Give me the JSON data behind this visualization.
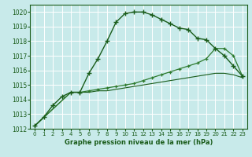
{
  "title": "Graphe pression niveau de la mer (hPa)",
  "bg_color": "#c8eaea",
  "grid_color": "#ffffff",
  "line_color_dark": "#1a5c1a",
  "line_color_med": "#2d7a2d",
  "xlim": [
    -0.5,
    23.5
  ],
  "ylim": [
    1012,
    1020.5
  ],
  "yticks": [
    1012,
    1013,
    1014,
    1015,
    1016,
    1017,
    1018,
    1019,
    1020
  ],
  "xticks": [
    0,
    1,
    2,
    3,
    4,
    5,
    6,
    7,
    8,
    9,
    10,
    11,
    12,
    13,
    14,
    15,
    16,
    17,
    18,
    19,
    20,
    21,
    22,
    23
  ],
  "series1_x": [
    0,
    1,
    2,
    3,
    4,
    5,
    6,
    7,
    8,
    9,
    10,
    11,
    12,
    13,
    14,
    15,
    16,
    17,
    18,
    19,
    20,
    21,
    22,
    23
  ],
  "series1_y": [
    1012.2,
    1012.8,
    1013.6,
    1014.2,
    1014.5,
    1014.5,
    1015.8,
    1016.8,
    1018.0,
    1019.3,
    1019.9,
    1020.0,
    1020.0,
    1019.8,
    1019.5,
    1019.2,
    1018.9,
    1018.8,
    1018.2,
    1018.1,
    1017.5,
    1017.0,
    1016.3,
    1015.6
  ],
  "series2_x": [
    0,
    4,
    5,
    6,
    7,
    8,
    9,
    10,
    11,
    12,
    13,
    14,
    15,
    16,
    17,
    18,
    19,
    20,
    21,
    22,
    23
  ],
  "series2_y": [
    1012.2,
    1014.5,
    1014.5,
    1014.6,
    1014.7,
    1014.8,
    1014.9,
    1015.0,
    1015.1,
    1015.3,
    1015.5,
    1015.7,
    1015.9,
    1016.1,
    1016.3,
    1016.5,
    1016.8,
    1017.5,
    1017.5,
    1017.0,
    1015.6
  ],
  "series3_x": [
    0,
    4,
    5,
    6,
    7,
    8,
    9,
    10,
    11,
    12,
    13,
    14,
    15,
    16,
    17,
    18,
    19,
    20,
    21,
    22,
    23
  ],
  "series3_y": [
    1012.2,
    1014.5,
    1014.5,
    1014.5,
    1014.6,
    1014.6,
    1014.7,
    1014.8,
    1014.9,
    1015.0,
    1015.1,
    1015.2,
    1015.3,
    1015.4,
    1015.5,
    1015.6,
    1015.7,
    1015.8,
    1015.8,
    1015.7,
    1015.5
  ]
}
